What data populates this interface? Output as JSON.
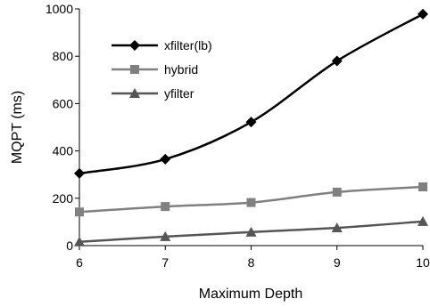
{
  "chart_data": {
    "type": "line",
    "xlabel": "Maximum Depth",
    "ylabel": "MQPT (ms)",
    "x": [
      6,
      7,
      8,
      9,
      10
    ],
    "xlim": [
      6,
      10
    ],
    "ylim": [
      0,
      1000
    ],
    "x_ticks": [
      "6",
      "7",
      "8",
      "9",
      "10"
    ],
    "y_ticks": [
      "0",
      "200",
      "400",
      "600",
      "800",
      "1000"
    ],
    "grid": false,
    "legend_position": "top-left",
    "series": [
      {
        "name": "xfilter(lb)",
        "values": [
          305,
          365,
          522,
          780,
          978
        ],
        "marker": "diamond",
        "color": "#000000"
      },
      {
        "name": "hybrid",
        "values": [
          142,
          165,
          182,
          226,
          248
        ],
        "marker": "square",
        "color": "#808080"
      },
      {
        "name": "yfilter",
        "values": [
          16,
          38,
          57,
          75,
          102
        ],
        "marker": "triangle",
        "color": "#555555"
      }
    ]
  }
}
